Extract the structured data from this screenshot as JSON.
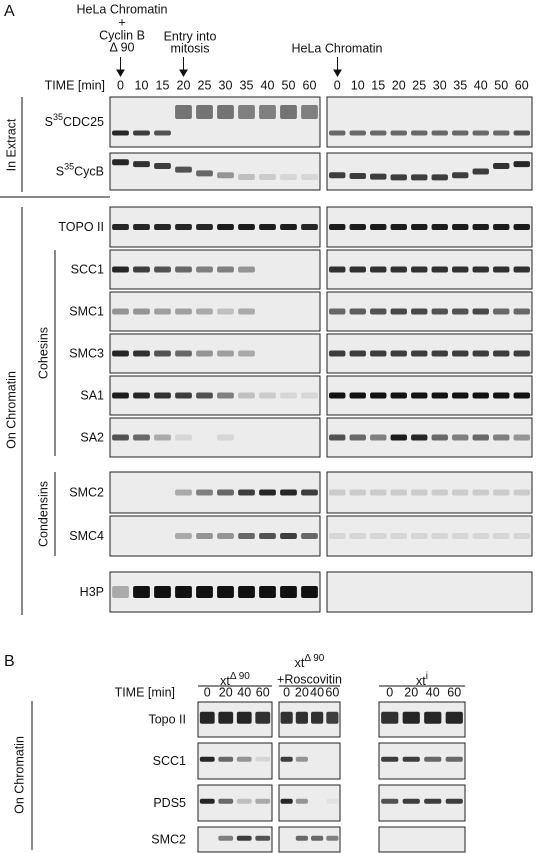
{
  "panel_a": {
    "label": "A",
    "annotation_left": [
      "HeLa Chromatin",
      "+",
      "Cyclin B",
      "Δ 90"
    ],
    "annotation_entry": [
      "Entry into",
      "mitosis"
    ],
    "annotation_right": "HeLa Chromatin",
    "time_label": "TIME [min]",
    "times_left": [
      0,
      10,
      15,
      20,
      25,
      30,
      35,
      40,
      50,
      60
    ],
    "times_right": [
      0,
      10,
      15,
      20,
      25,
      30,
      35,
      40,
      50,
      60
    ],
    "group_in_extract": "In Extract",
    "group_on_chromatin": "On Chromatin",
    "group_cohesins": "Cohesins",
    "group_condensins": "Condensins",
    "rows": [
      {
        "label": "S",
        "sup": "35",
        "suffix": "CDC25"
      },
      {
        "label": "S",
        "sup": "35",
        "suffix": "CycB"
      },
      {
        "label": "TOPO II"
      },
      {
        "label": "SCC1"
      },
      {
        "label": "SMC1"
      },
      {
        "label": "SMC3"
      },
      {
        "label": "SA1"
      },
      {
        "label": "SA2"
      },
      {
        "label": "SMC2"
      },
      {
        "label": "SMC4"
      },
      {
        "label": "H3P"
      }
    ]
  },
  "panel_b": {
    "label": "B",
    "groups": [
      {
        "name": "xt",
        "sup": "Δ 90"
      },
      {
        "name": "xt",
        "sup": "Δ 90",
        "line2": "+Roscovitin"
      },
      {
        "name": "xt",
        "sup": "i"
      }
    ],
    "time_label": "TIME [min]",
    "times": [
      0,
      20,
      40,
      60
    ],
    "group_on_chromatin": "On Chromatin",
    "rows": [
      {
        "label": "Topo II"
      },
      {
        "label": "SCC1"
      },
      {
        "label": "PDS5"
      },
      {
        "label": "SMC2"
      }
    ]
  }
}
